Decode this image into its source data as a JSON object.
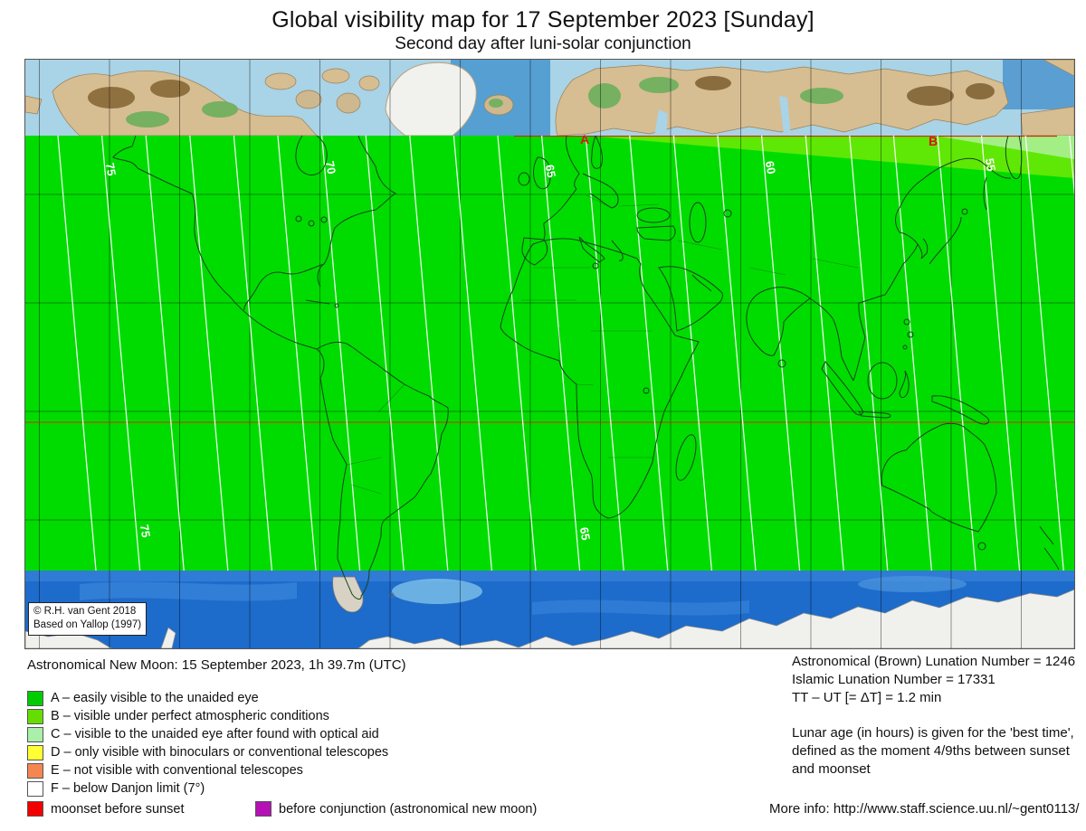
{
  "title": "Global visibility map for 17 September 2023 [Sunday]",
  "subtitle": "Second day after luni-solar conjunction",
  "map": {
    "zone_markers": {
      "a": "A",
      "b": "B"
    },
    "contour_unit": "lunar age in hours",
    "contours": {
      "top": [
        {
          "value": "75"
        },
        {
          "value": "70"
        },
        {
          "value": "65"
        },
        {
          "value": "60"
        },
        {
          "value": "55"
        }
      ],
      "bottom": [
        {
          "value": "75"
        },
        {
          "value": "65"
        }
      ]
    },
    "copyright": {
      "line1": "© R.H. van Gent 2018",
      "line2": "Based on Yallop (1997)"
    }
  },
  "legend": {
    "new_moon": "Astronomical New Moon: 15 September 2023, 1h 39.7m (UTC)",
    "zones": [
      {
        "code": "A",
        "label": "A – easily visible to the unaided eye",
        "color": "#00CC00"
      },
      {
        "code": "B",
        "label": "B – visible under perfect atmospheric conditions",
        "color": "#66DD00"
      },
      {
        "code": "C",
        "label": "C – visible to the unaided eye after found with optical aid",
        "color": "#AAEFAA"
      },
      {
        "code": "D",
        "label": "D – only visible with binoculars or conventional telescopes",
        "color": "#FFFF33"
      },
      {
        "code": "E",
        "label": "E – not visible with conventional telescopes",
        "color": "#F58652"
      },
      {
        "code": "F",
        "label": "F – below Danjon limit (7°)",
        "color": "#FFFFFF"
      }
    ],
    "extras": [
      {
        "label": "moonset before sunset",
        "color": "#F40000"
      },
      {
        "label": "before conjunction (astronomical new moon)",
        "color": "#B511B5"
      }
    ]
  },
  "info": {
    "brown_lunation": "Astronomical (Brown) Lunation Number = 1246",
    "islamic_lunation": "Islamic Lunation Number = 17331",
    "tt_ut": "TT – UT [= ΔT] = 1.2 min",
    "lunar_age_note": "Lunar age (in hours) is given for the 'best time', defined as the moment 4/9ths between sunset and moonset",
    "more_info": "More info: http://www.staff.science.uu.nl/~gent0113/"
  }
}
